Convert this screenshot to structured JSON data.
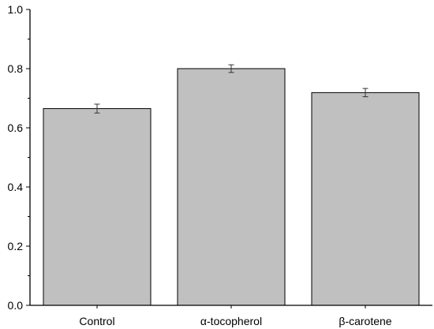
{
  "chart_data": {
    "type": "bar",
    "categories": [
      "Control",
      "α-tocopherol",
      "β-carotene"
    ],
    "values": [
      0.665,
      0.8,
      0.719
    ],
    "errors": [
      0.015,
      0.013,
      0.014
    ],
    "ylim": [
      0,
      1.0
    ],
    "yticks": [
      "0.0",
      "0.2",
      "0.4",
      "0.6",
      "0.8",
      "1.0"
    ],
    "ytick_values": [
      0,
      0.2,
      0.4,
      0.6,
      0.8,
      1.0
    ],
    "minor_ytick_step": 0.1,
    "title": "",
    "xlabel": "",
    "ylabel": "",
    "grid": false,
    "bar_color": "#c0c0c0",
    "edge_color": "#000000"
  }
}
